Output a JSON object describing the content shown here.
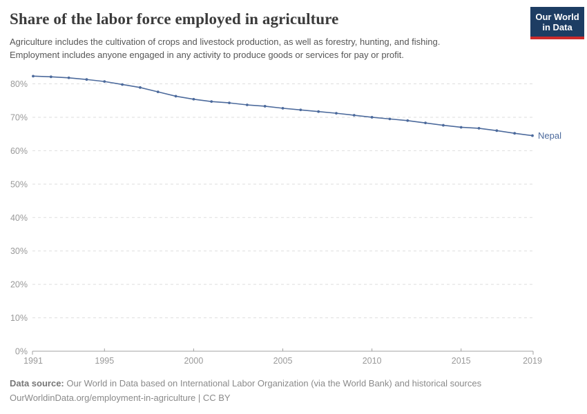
{
  "header": {
    "title": "Share of the labor force employed in agriculture",
    "subtitle_lines": [
      "Agriculture includes the cultivation of crops and livestock production, as well as forestry, hunting, and fishing.",
      "Employment includes anyone engaged in any activity to produce goods or services for pay or profit."
    ],
    "logo": {
      "line1": "Our World",
      "line2": "in Data",
      "bg_color": "#1d3d63",
      "stripe_color": "#cc2b2b"
    }
  },
  "chart_data": {
    "type": "line",
    "title": "Share of the labor force employed in agriculture",
    "x": [
      1991,
      1992,
      1993,
      1994,
      1995,
      1996,
      1997,
      1998,
      1999,
      2000,
      2001,
      2002,
      2003,
      2004,
      2005,
      2006,
      2007,
      2008,
      2009,
      2010,
      2011,
      2012,
      2013,
      2014,
      2015,
      2016,
      2017,
      2018,
      2019
    ],
    "series": [
      {
        "name": "Nepal",
        "color": "#4C6A9C",
        "values": [
          82.3,
          82.1,
          81.8,
          81.3,
          80.7,
          79.8,
          78.9,
          77.6,
          76.3,
          75.4,
          74.7,
          74.3,
          73.7,
          73.3,
          72.7,
          72.2,
          71.7,
          71.2,
          70.6,
          70.0,
          69.5,
          69.0,
          68.3,
          67.6,
          67.0,
          66.7,
          66.0,
          65.2,
          64.5
        ]
      }
    ],
    "xticks": [
      1991,
      1995,
      2000,
      2005,
      2010,
      2015,
      2019
    ],
    "yticks": [
      0,
      10,
      20,
      30,
      40,
      50,
      60,
      70,
      80
    ],
    "ytick_suffix": "%",
    "ylim": [
      0,
      85
    ],
    "xlabel": "",
    "ylabel": "",
    "grid": "horizontal-dashed",
    "grid_color": "#dedede",
    "axis_color": "#a1a1a1",
    "tick_label_color": "#999999",
    "legend_position": "end-of-line",
    "end_label": "Nepal"
  },
  "footer": {
    "source_label": "Data source:",
    "source_text": " Our World in Data based on International Labor Organization (via the World Bank) and historical sources",
    "url_line": "OurWorldinData.org/employment-in-agriculture | CC BY"
  }
}
